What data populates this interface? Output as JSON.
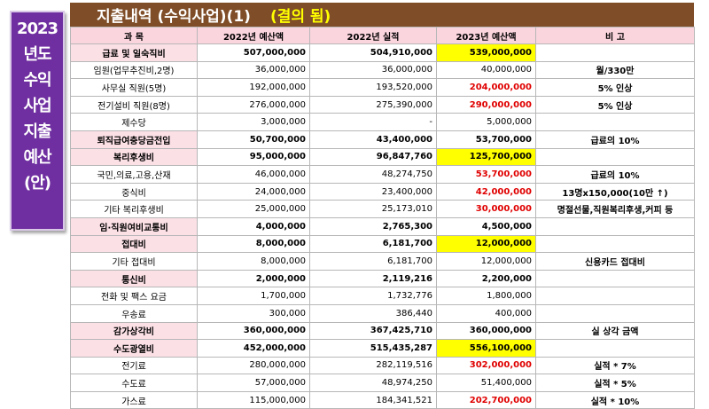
{
  "side_title": [
    "2023",
    "년도",
    "수익",
    "사업",
    "지출",
    "예산",
    "(안)"
  ],
  "title": {
    "main": "지출내역 (수익사업)(1)",
    "status": "(결의 됨)"
  },
  "colors": {
    "title_bg": "#7f4d27",
    "side_bg": "#6f2fa0",
    "header_bg": "#fbd5de",
    "highlight": "#ffff00",
    "red_text": "#e00000"
  },
  "table": {
    "headers": [
      "과    목",
      "2022년 예산액",
      "2022년 실적",
      "2023년 예산액",
      "비        고"
    ],
    "rows": [
      {
        "kind": "main",
        "item": "급료 및 일숙직비",
        "b2022": "507,000,000",
        "a2022": "504,910,000",
        "b2023": "539,000,000",
        "note": "",
        "hl": true,
        "red": false
      },
      {
        "kind": "sub",
        "item": "임원(업무추진비,2명)",
        "b2022": "36,000,000",
        "a2022": "36,000,000",
        "b2023": "40,000,000",
        "note": "월/330만",
        "hl": false,
        "red": false
      },
      {
        "kind": "sub",
        "item": "사무실 직원(5명)",
        "b2022": "192,000,000",
        "a2022": "193,520,000",
        "b2023": "204,000,000",
        "note": "5% 인상",
        "hl": false,
        "red": true
      },
      {
        "kind": "sub",
        "item": "전기설비 직원(8명)",
        "b2022": "276,000,000",
        "a2022": "275,390,000",
        "b2023": "290,000,000",
        "note": "5% 인상",
        "hl": false,
        "red": true
      },
      {
        "kind": "sub",
        "item": "제수당",
        "b2022": "3,000,000",
        "a2022": "-",
        "b2023": "5,000,000",
        "note": "",
        "hl": false,
        "red": false
      },
      {
        "kind": "main",
        "item": "퇴직급여충당금전입",
        "b2022": "50,700,000",
        "a2022": "43,400,000",
        "b2023": "53,700,000",
        "note": "급료의 10%",
        "hl": false,
        "red": false
      },
      {
        "kind": "main",
        "item": "복리후생비",
        "b2022": "95,000,000",
        "a2022": "96,847,760",
        "b2023": "125,700,000",
        "note": "",
        "hl": true,
        "red": false
      },
      {
        "kind": "sub",
        "item": "국민,의료,고용,산재",
        "b2022": "46,000,000",
        "a2022": "48,274,750",
        "b2023": "53,700,000",
        "note": "급료의 10%",
        "hl": false,
        "red": true
      },
      {
        "kind": "sub",
        "item": "중식비",
        "b2022": "24,000,000",
        "a2022": "23,400,000",
        "b2023": "42,000,000",
        "note": "13명x150,000(10만 ↑)",
        "hl": false,
        "red": true
      },
      {
        "kind": "sub",
        "item": "기타 복리후생비",
        "b2022": "25,000,000",
        "a2022": "25,173,010",
        "b2023": "30,000,000",
        "note": "명절선물,직원복리후생,커피 등",
        "hl": false,
        "red": true
      },
      {
        "kind": "main",
        "item": "임·직원여비교통비",
        "b2022": "4,000,000",
        "a2022": "2,765,300",
        "b2023": "4,500,000",
        "note": "",
        "hl": false,
        "red": false
      },
      {
        "kind": "main",
        "item": "접대비",
        "b2022": "8,000,000",
        "a2022": "6,181,700",
        "b2023": "12,000,000",
        "note": "",
        "hl": true,
        "red": false
      },
      {
        "kind": "sub",
        "item": "기타 접대비",
        "b2022": "8,000,000",
        "a2022": "6,181,700",
        "b2023": "12,000,000",
        "note": "신용카드 접대비",
        "hl": false,
        "red": false
      },
      {
        "kind": "main",
        "item": "통신비",
        "b2022": "2,000,000",
        "a2022": "2,119,216",
        "b2023": "2,200,000",
        "note": "",
        "hl": false,
        "red": false
      },
      {
        "kind": "sub",
        "item": "전화 및 팩스 요금",
        "b2022": "1,700,000",
        "a2022": "1,732,776",
        "b2023": "1,800,000",
        "note": "",
        "hl": false,
        "red": false
      },
      {
        "kind": "sub",
        "item": "우송료",
        "b2022": "300,000",
        "a2022": "386,440",
        "b2023": "400,000",
        "note": "",
        "hl": false,
        "red": false
      },
      {
        "kind": "main",
        "item": "감가상각비",
        "b2022": "360,000,000",
        "a2022": "367,425,710",
        "b2023": "360,000,000",
        "note": "실 상각 금액",
        "hl": false,
        "red": false
      },
      {
        "kind": "main",
        "item": "수도광열비",
        "b2022": "452,000,000",
        "a2022": "515,435,287",
        "b2023": "556,100,000",
        "note": "",
        "hl": true,
        "red": false
      },
      {
        "kind": "sub",
        "item": "전기료",
        "b2022": "280,000,000",
        "a2022": "282,119,516",
        "b2023": "302,000,000",
        "note": "실적 * 7%",
        "hl": false,
        "red": true
      },
      {
        "kind": "sub",
        "item": "수도료",
        "b2022": "57,000,000",
        "a2022": "48,974,250",
        "b2023": "51,400,000",
        "note": "실적 * 5%",
        "hl": false,
        "red": false
      },
      {
        "kind": "sub",
        "item": "가스료",
        "b2022": "115,000,000",
        "a2022": "184,341,521",
        "b2023": "202,700,000",
        "note": "실적 * 10%",
        "hl": false,
        "red": true
      }
    ]
  }
}
